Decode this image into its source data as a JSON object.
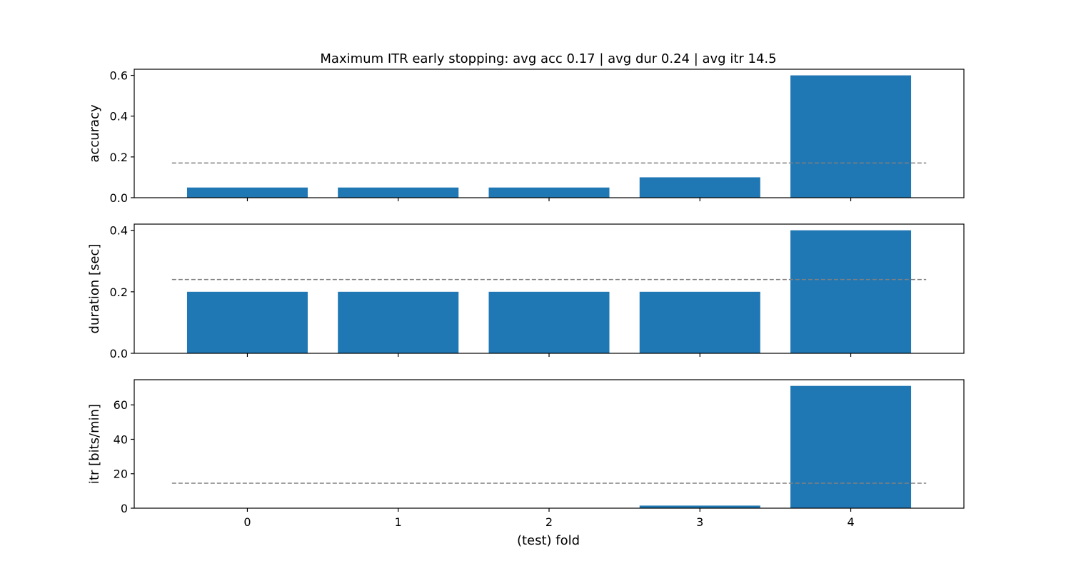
{
  "chart_data": {
    "type": "bar",
    "title": "Maximum ITR early stopping: avg acc 0.17 | avg dur 0.24 | avg itr 14.5",
    "xlabel": "(test) fold",
    "categories": [
      0,
      1,
      2,
      3,
      4
    ],
    "bar_color": "#1f77b4",
    "mean_line_color": "#808080",
    "legend": "none",
    "grid": false,
    "panels": [
      {
        "ylabel": "accuracy",
        "values": [
          0.05,
          0.05,
          0.05,
          0.1,
          0.6
        ],
        "mean": 0.17,
        "ylim": [
          0,
          0.63
        ],
        "yticks": [
          0.0,
          0.2,
          0.4,
          0.6
        ],
        "ytick_labels": [
          "0.0",
          "0.2",
          "0.4",
          "0.6"
        ]
      },
      {
        "ylabel": "duration [sec]",
        "values": [
          0.2,
          0.2,
          0.2,
          0.2,
          0.4
        ],
        "mean": 0.24,
        "ylim": [
          0,
          0.42
        ],
        "yticks": [
          0.0,
          0.2,
          0.4
        ],
        "ytick_labels": [
          "0.0",
          "0.2",
          "0.4"
        ]
      },
      {
        "ylabel": "itr [bits/min]",
        "values": [
          0.0,
          0.0,
          0.0,
          1.5,
          71.0
        ],
        "mean": 14.5,
        "ylim": [
          0,
          74.6
        ],
        "yticks": [
          0,
          20,
          40,
          60
        ],
        "ytick_labels": [
          "0",
          "20",
          "40",
          "60"
        ]
      }
    ],
    "xlim": [
      -0.75,
      4.75
    ],
    "xtick_labels": [
      "0",
      "1",
      "2",
      "3",
      "4"
    ]
  }
}
